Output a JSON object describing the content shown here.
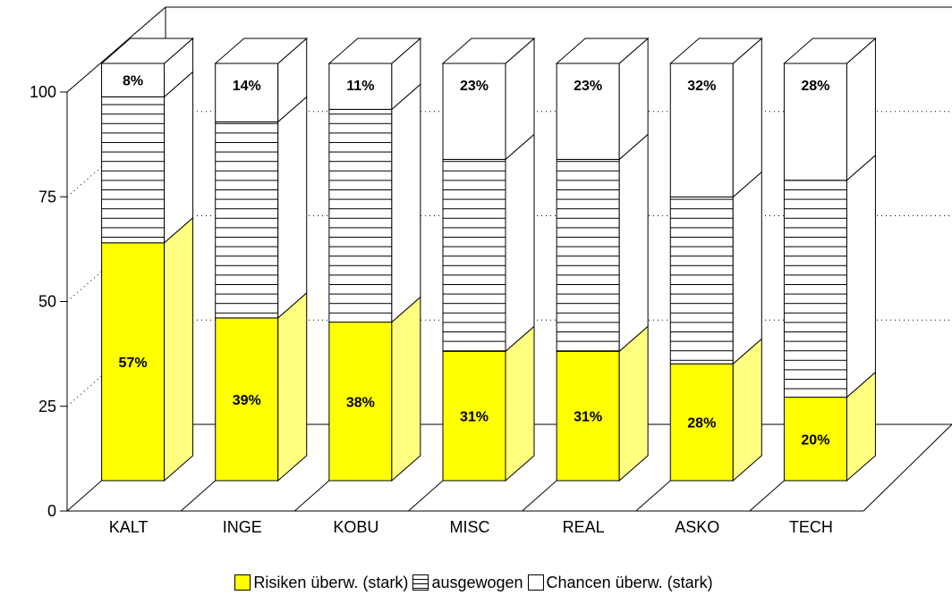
{
  "chart_data": {
    "type": "bar",
    "stacked": true,
    "three_d": true,
    "categories": [
      "KALT",
      "INGE",
      "KOBU",
      "MISC",
      "REAL",
      "ASKO",
      "TECH"
    ],
    "series": [
      {
        "name": "Risiken überw. (stark)",
        "values": [
          57,
          39,
          38,
          31,
          31,
          28,
          20
        ],
        "labels": [
          "57%",
          "39%",
          "38%",
          "31%",
          "31%",
          "28%",
          "20%"
        ],
        "color": "#ffff00",
        "pattern": "solid"
      },
      {
        "name": "ausgewogen",
        "values": [
          35,
          47,
          51,
          46,
          46,
          40,
          52
        ],
        "labels": [
          "",
          "",
          "",
          "",
          "",
          "",
          ""
        ],
        "color": "#ffffff",
        "pattern": "horizontal-lines"
      },
      {
        "name": "Chancen überw. (stark)",
        "values": [
          8,
          14,
          11,
          23,
          23,
          32,
          28
        ],
        "labels": [
          "8%",
          "14%",
          "11%",
          "23%",
          "23%",
          "32%",
          "28%"
        ],
        "color": "#ffffff",
        "pattern": "solid"
      }
    ],
    "ylim": [
      0,
      100
    ],
    "yticks": [
      0,
      25,
      50,
      75,
      100
    ],
    "ytick_labels": [
      "0",
      "25",
      "50",
      "75",
      "100"
    ],
    "grid": "dotted-horizontal",
    "legend_position": "bottom"
  }
}
